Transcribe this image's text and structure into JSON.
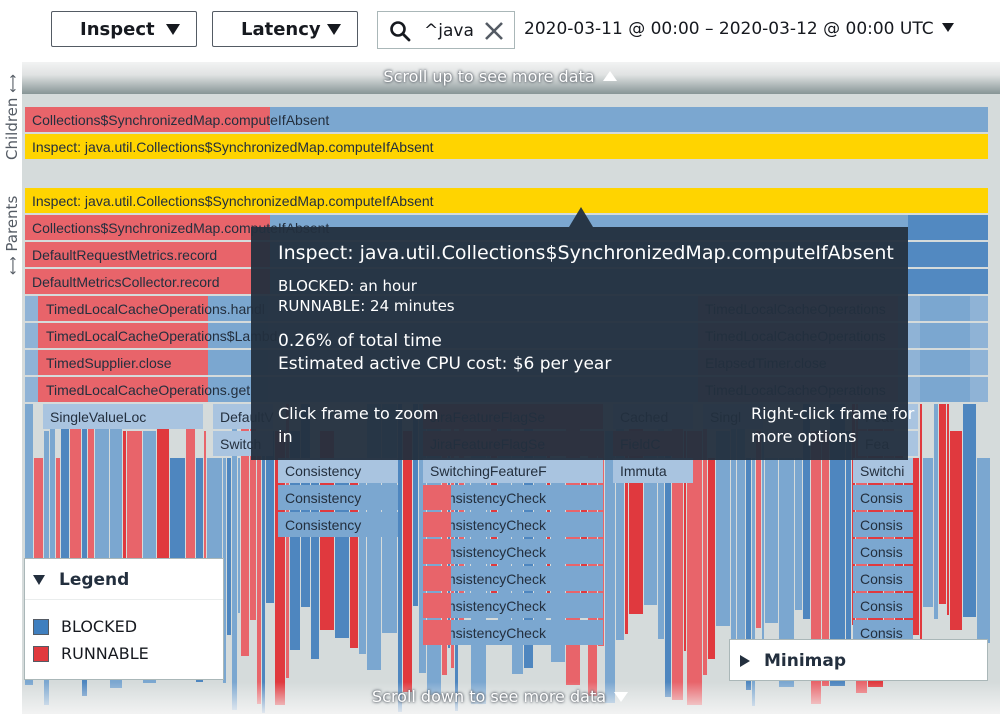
{
  "toolbar": {
    "mode_label": "Inspect",
    "metric_label": "Latency",
    "search_value": "^java",
    "date_range": "2020-03-11 @ 00:00 – 2020-03-12 @ 00:00 UTC"
  },
  "scroll": {
    "up_label": "Scroll up to see more data",
    "down_label": "Scroll down to see more data"
  },
  "section_labels": {
    "children": "Children",
    "parents": "Parents"
  },
  "colors": {
    "blocked": "#7ba7d0",
    "runnable": "#e8646a",
    "highlight": "#ffd400",
    "tooltip_bg": "#232f3e"
  },
  "flamegraph": {
    "children_rows": [
      {
        "label": "Collections$SynchronizedMap.computeIfAbsent",
        "type": "mixed"
      },
      {
        "label": "Inspect: java.util.Collections$SynchronizedMap.computeIfAbsent",
        "type": "highlight"
      }
    ],
    "parent_rows": [
      {
        "label": "Inspect: java.util.Collections$SynchronizedMap.computeIfAbsent"
      },
      {
        "label": "Collections$SynchronizedMap.computeIfAbsent"
      },
      {
        "label": "DefaultRequestMetrics.record"
      },
      {
        "label": "DefaultMetricsCollector.record"
      },
      {
        "label": "TimedLocalCacheOperations.handl"
      },
      {
        "label": "TimedLocalCacheOperations$Lambd"
      },
      {
        "label": "TimedSupplier.close"
      },
      {
        "label": "TimedLocalCacheOperations.get"
      }
    ],
    "right_frames": [
      "TimedLocalCacheOperations",
      "TimedLocalCacheOperations",
      "ElapsedTimer.close",
      "TimedLocalCacheOperations"
    ],
    "frames": [
      {
        "label": "SingleValueLoc"
      },
      {
        "label": "DefaultV"
      },
      {
        "label": "Switch"
      },
      {
        "label": "JiraFeatureFlagSe"
      },
      {
        "label": "JiraFeatureFlagSe"
      },
      {
        "label": "Cached"
      },
      {
        "label": "FieldC"
      },
      {
        "label": "Singl"
      },
      {
        "label": "Feat"
      },
      {
        "label": "Fea"
      },
      {
        "label": "Consistency"
      },
      {
        "label": "Consistency"
      },
      {
        "label": "Consistency"
      },
      {
        "label": "SwitchingFeatureF"
      },
      {
        "label": "ConsistencyCheck"
      },
      {
        "label": "ConsistencyCheck"
      },
      {
        "label": "ConsistencyCheck"
      },
      {
        "label": "ConsistencyCheck"
      },
      {
        "label": "ConsistencyCheck"
      },
      {
        "label": "ConsistencyCheck"
      },
      {
        "label": "Immuta"
      },
      {
        "label": "Switchi"
      },
      {
        "label": "Consis"
      },
      {
        "label": "Consis"
      },
      {
        "label": "Consis"
      },
      {
        "label": "Consis"
      },
      {
        "label": "Consis"
      },
      {
        "label": "Consis"
      }
    ]
  },
  "tooltip": {
    "title": "Inspect: java.util.Collections$SynchronizedMap.computeIfAbsent",
    "blocked": "BLOCKED: an hour",
    "runnable": "RUNNABLE: 24 minutes",
    "total_time": "0.26% of total time",
    "cpu_cost": "Estimated active CPU cost: $6 per year",
    "hint_left": "Click frame to zoom in",
    "hint_right": "Right-click frame for more options"
  },
  "legend": {
    "title": "Legend",
    "items": [
      {
        "label": "BLOCKED",
        "color": "#3f7fbf"
      },
      {
        "label": "RUNNABLE",
        "color": "#e0393e"
      }
    ]
  },
  "minimap": {
    "title": "Minimap"
  }
}
